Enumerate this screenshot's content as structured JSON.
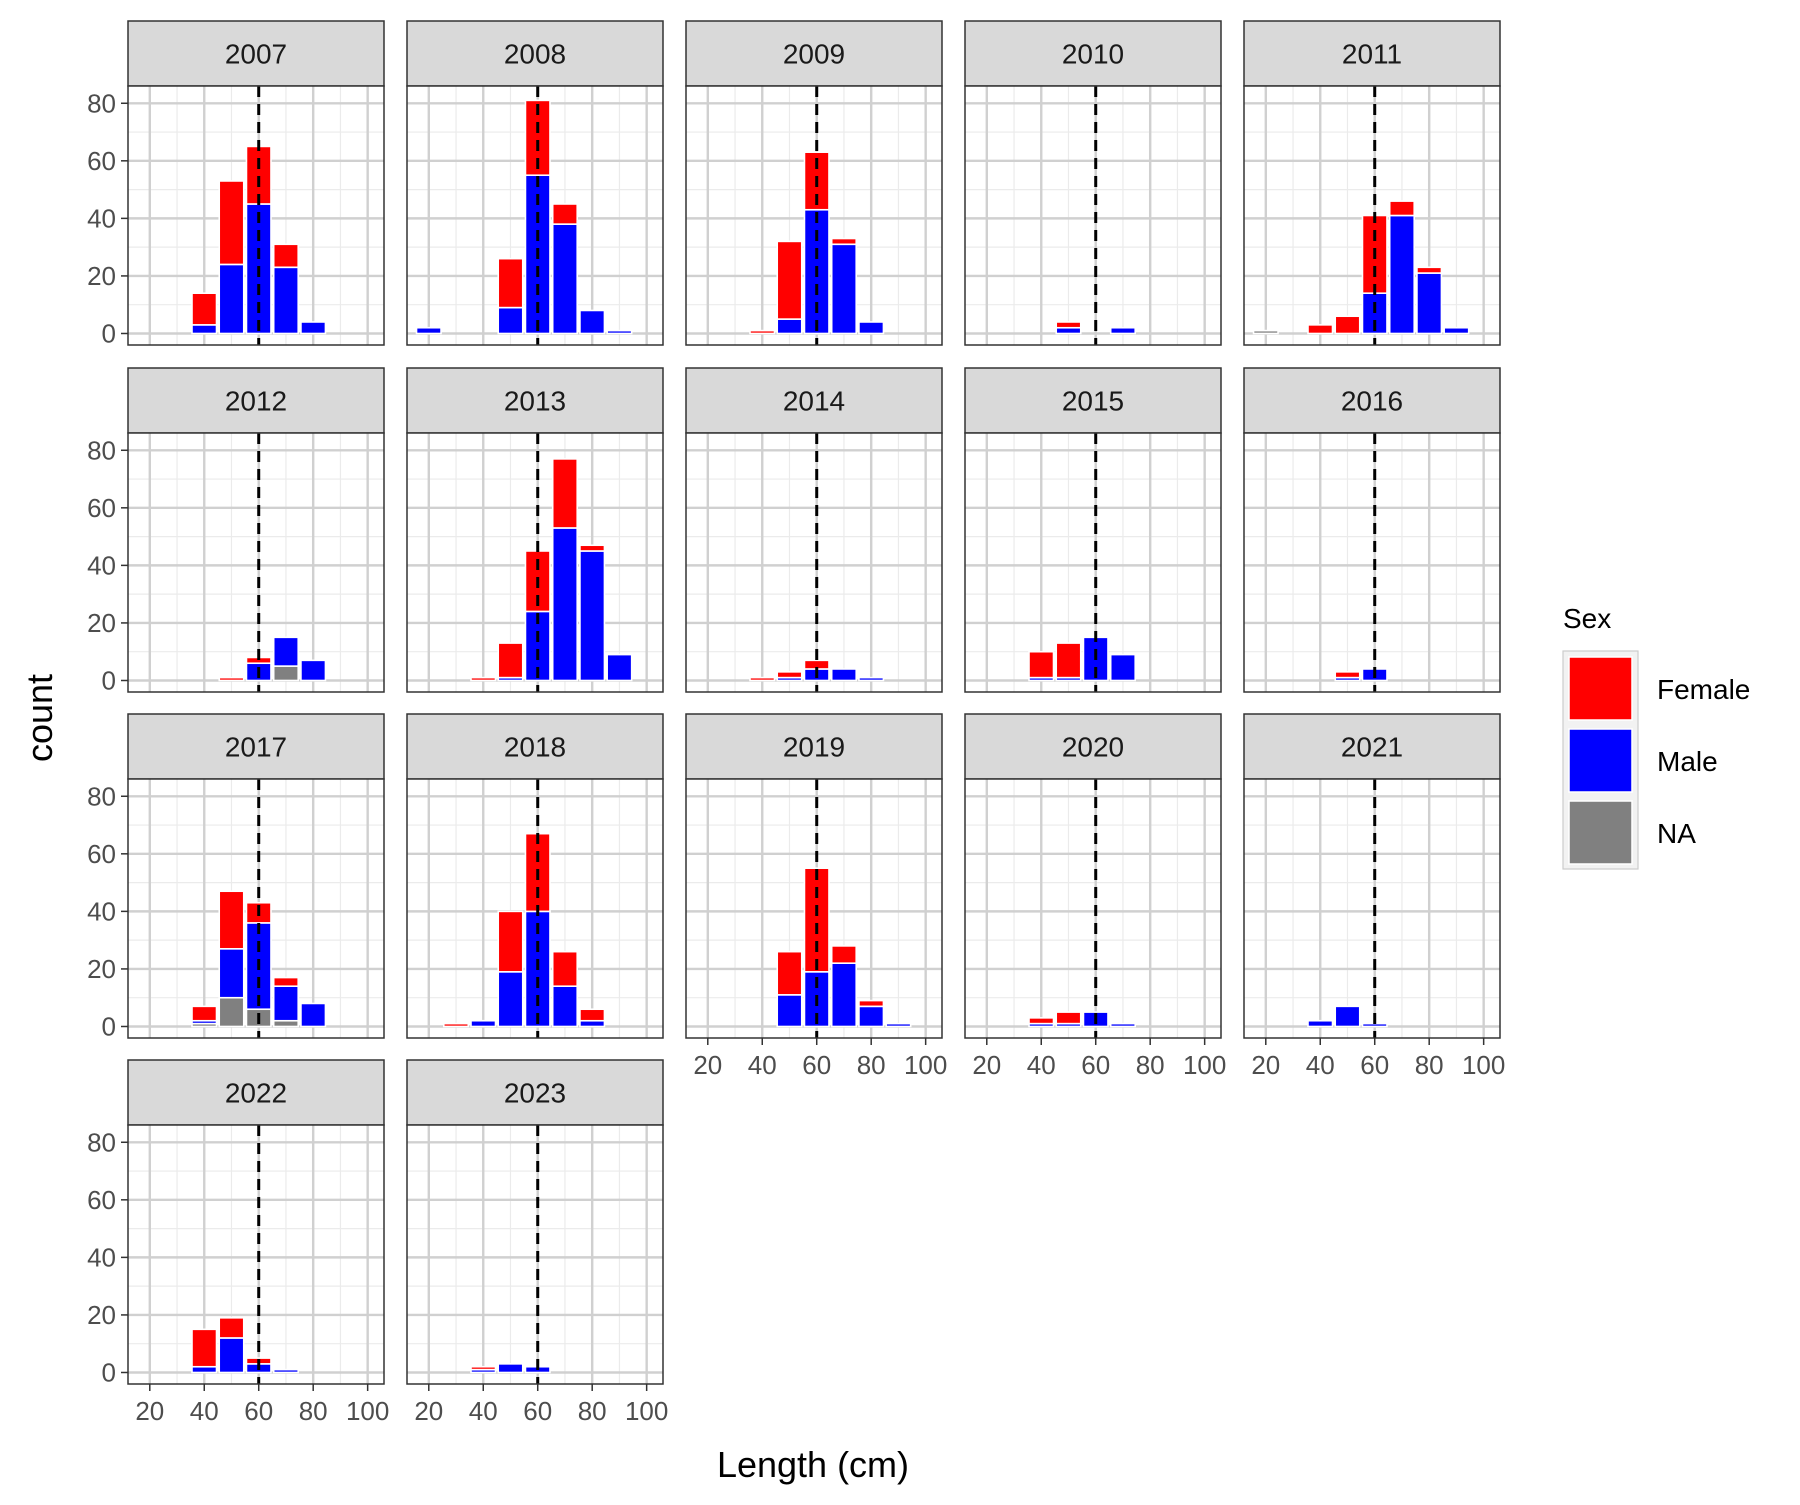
{
  "chart_data": {
    "type": "bar",
    "stacked": true,
    "xlabel": "Length (cm)",
    "ylabel": "count",
    "x_ticks": [
      20,
      40,
      60,
      80,
      100
    ],
    "y_ticks": [
      0,
      20,
      40,
      60,
      80
    ],
    "xlim": [
      12,
      106
    ],
    "ylim": [
      -4,
      86
    ],
    "reference_line_x": 60,
    "legend": {
      "title": "Sex",
      "placement": "right",
      "entries": [
        {
          "label": "Female",
          "color": "#ff0000"
        },
        {
          "label": "Male",
          "color": "#0000ff"
        },
        {
          "label": "NA",
          "color": "#808080"
        }
      ]
    },
    "stack_order": [
      "na",
      "male",
      "female"
    ],
    "panels": [
      {
        "year": "2007",
        "bars": [
          {
            "x": 40,
            "male": 3,
            "female": 11
          },
          {
            "x": 50,
            "male": 24,
            "female": 29
          },
          {
            "x": 60,
            "male": 45,
            "female": 20
          },
          {
            "x": 70,
            "male": 23,
            "female": 8
          },
          {
            "x": 80,
            "male": 4,
            "female": 0
          }
        ]
      },
      {
        "year": "2008",
        "bars": [
          {
            "x": 20,
            "male": 2,
            "female": 0
          },
          {
            "x": 50,
            "male": 9,
            "female": 17
          },
          {
            "x": 60,
            "male": 55,
            "female": 26
          },
          {
            "x": 70,
            "male": 38,
            "female": 7
          },
          {
            "x": 80,
            "male": 8,
            "female": 0
          },
          {
            "x": 90,
            "male": 1,
            "female": 0
          }
        ]
      },
      {
        "year": "2009",
        "bars": [
          {
            "x": 40,
            "male": 0,
            "female": 1
          },
          {
            "x": 50,
            "male": 5,
            "female": 27
          },
          {
            "x": 60,
            "male": 43,
            "female": 20
          },
          {
            "x": 70,
            "male": 31,
            "female": 2
          },
          {
            "x": 80,
            "male": 4,
            "female": 0
          }
        ]
      },
      {
        "year": "2010",
        "bars": [
          {
            "x": 50,
            "male": 2,
            "female": 2
          },
          {
            "x": 70,
            "male": 2,
            "female": 0
          }
        ]
      },
      {
        "year": "2011",
        "bars": [
          {
            "x": 20,
            "na": 1,
            "male": 0,
            "female": 0
          },
          {
            "x": 40,
            "male": 0,
            "female": 3
          },
          {
            "x": 50,
            "male": 0,
            "female": 6
          },
          {
            "x": 60,
            "male": 14,
            "female": 27
          },
          {
            "x": 70,
            "male": 41,
            "female": 5
          },
          {
            "x": 80,
            "male": 21,
            "female": 2
          },
          {
            "x": 90,
            "male": 2,
            "female": 0
          }
        ]
      },
      {
        "year": "2012",
        "bars": [
          {
            "x": 50,
            "male": 0,
            "female": 1
          },
          {
            "x": 60,
            "male": 6,
            "female": 2
          },
          {
            "x": 70,
            "na": 5,
            "male": 10,
            "female": 0
          },
          {
            "x": 80,
            "male": 7,
            "female": 0
          }
        ]
      },
      {
        "year": "2013",
        "bars": [
          {
            "x": 40,
            "male": 0,
            "female": 1
          },
          {
            "x": 50,
            "male": 1,
            "female": 12
          },
          {
            "x": 60,
            "male": 24,
            "female": 21
          },
          {
            "x": 70,
            "male": 53,
            "female": 24
          },
          {
            "x": 80,
            "male": 45,
            "female": 2
          },
          {
            "x": 90,
            "male": 9,
            "female": 0
          }
        ]
      },
      {
        "year": "2014",
        "bars": [
          {
            "x": 40,
            "male": 0,
            "female": 1
          },
          {
            "x": 50,
            "male": 1,
            "female": 2
          },
          {
            "x": 60,
            "male": 4,
            "female": 3
          },
          {
            "x": 70,
            "male": 4,
            "female": 0
          },
          {
            "x": 80,
            "male": 1,
            "female": 0
          }
        ]
      },
      {
        "year": "2015",
        "bars": [
          {
            "x": 40,
            "male": 1,
            "female": 9
          },
          {
            "x": 50,
            "male": 1,
            "female": 12
          },
          {
            "x": 60,
            "male": 15,
            "female": 0
          },
          {
            "x": 70,
            "male": 9,
            "female": 0
          }
        ]
      },
      {
        "year": "2016",
        "bars": [
          {
            "x": 50,
            "male": 1,
            "female": 2
          },
          {
            "x": 60,
            "male": 4,
            "female": 0
          }
        ]
      },
      {
        "year": "2017",
        "bars": [
          {
            "x": 40,
            "na": 1,
            "male": 1,
            "female": 5
          },
          {
            "x": 50,
            "na": 10,
            "male": 17,
            "female": 20
          },
          {
            "x": 60,
            "na": 6,
            "male": 30,
            "female": 7
          },
          {
            "x": 70,
            "na": 2,
            "male": 12,
            "female": 3
          },
          {
            "x": 80,
            "male": 8,
            "female": 0
          }
        ]
      },
      {
        "year": "2018",
        "bars": [
          {
            "x": 30,
            "male": 0,
            "female": 1
          },
          {
            "x": 40,
            "male": 2,
            "female": 0
          },
          {
            "x": 50,
            "male": 19,
            "female": 21
          },
          {
            "x": 60,
            "male": 40,
            "female": 27
          },
          {
            "x": 70,
            "male": 14,
            "female": 12
          },
          {
            "x": 80,
            "male": 2,
            "female": 4
          }
        ]
      },
      {
        "year": "2019",
        "bars": [
          {
            "x": 50,
            "male": 11,
            "female": 15
          },
          {
            "x": 60,
            "male": 19,
            "female": 36
          },
          {
            "x": 70,
            "male": 22,
            "female": 6
          },
          {
            "x": 80,
            "male": 7,
            "female": 2
          },
          {
            "x": 90,
            "male": 1,
            "female": 0
          }
        ]
      },
      {
        "year": "2020",
        "bars": [
          {
            "x": 40,
            "male": 1,
            "female": 2
          },
          {
            "x": 50,
            "male": 1,
            "female": 4
          },
          {
            "x": 60,
            "male": 5,
            "female": 0
          },
          {
            "x": 70,
            "male": 1,
            "female": 0
          }
        ]
      },
      {
        "year": "2021",
        "bars": [
          {
            "x": 40,
            "male": 2,
            "female": 0
          },
          {
            "x": 50,
            "male": 7,
            "female": 0
          },
          {
            "x": 60,
            "male": 1,
            "female": 0
          }
        ]
      },
      {
        "year": "2022",
        "bars": [
          {
            "x": 40,
            "male": 2,
            "female": 13
          },
          {
            "x": 50,
            "male": 12,
            "female": 7
          },
          {
            "x": 60,
            "male": 3,
            "female": 2
          },
          {
            "x": 70,
            "male": 1,
            "female": 0
          }
        ]
      },
      {
        "year": "2023",
        "bars": [
          {
            "x": 40,
            "male": 1,
            "female": 1
          },
          {
            "x": 50,
            "male": 3,
            "female": 0
          },
          {
            "x": 60,
            "male": 2,
            "female": 0
          }
        ]
      }
    ]
  }
}
